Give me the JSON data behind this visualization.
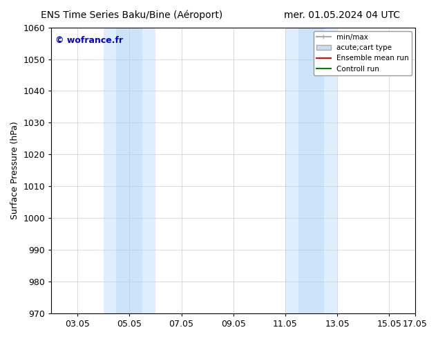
{
  "title_left": "ENS Time Series Baku/Bine (Aéroport)",
  "title_right": "mer. 01.05.2024 04 UTC",
  "ylabel": "Surface Pressure (hPa)",
  "ylim": [
    970,
    1060
  ],
  "yticks": [
    970,
    980,
    990,
    1000,
    1010,
    1020,
    1030,
    1040,
    1050,
    1060
  ],
  "xlim_start": 0,
  "xlim_end": 14,
  "xtick_labels": [
    "03.05",
    "05.05",
    "07.05",
    "09.05",
    "11.05",
    "13.05",
    "15.05",
    "17.05"
  ],
  "xtick_positions": [
    1,
    3,
    5,
    7,
    9,
    11,
    13,
    14
  ],
  "shaded_bands": [
    {
      "xmin": 2.5,
      "xmax": 3.5
    },
    {
      "xmin": 2.75,
      "xmax": 3.25
    },
    {
      "xmin": 9.5,
      "xmax": 10.5
    },
    {
      "xmin": 9.75,
      "xmax": 10.25
    }
  ],
  "shaded_bands_v2": [
    {
      "xmin": 2.5,
      "xmax": 3.5,
      "color": "#ddeeff"
    },
    {
      "xmin": 9.5,
      "xmax": 10.5,
      "color": "#ddeeff"
    }
  ],
  "watermark": "© wofrance.fr",
  "watermark_color": "#0000cc",
  "legend_items": [
    {
      "label": "min/max",
      "color": "#aaaaaa",
      "lw": 1.5,
      "style": "|-|"
    },
    {
      "label": "acute;cart type",
      "color": "#ccddee",
      "lw": 8
    },
    {
      "label": "Ensemble mean run",
      "color": "red",
      "lw": 1.5
    },
    {
      "label": "Controll run",
      "color": "green",
      "lw": 1.5
    }
  ],
  "bg_color": "#ffffff",
  "plot_bg_color": "#ffffff",
  "grid_color": "#cccccc",
  "border_color": "#000000"
}
